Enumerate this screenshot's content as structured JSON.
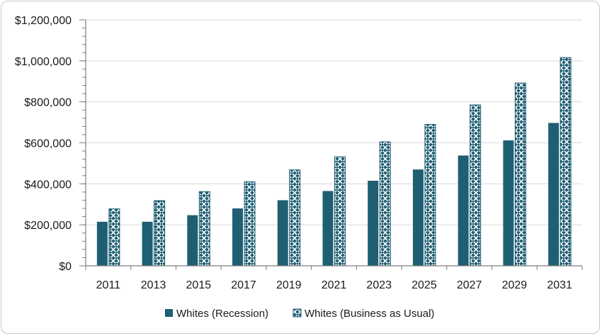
{
  "chart_data": {
    "type": "bar",
    "title": "",
    "xlabel": "",
    "ylabel": "",
    "categories": [
      "2011",
      "2013",
      "2015",
      "2017",
      "2019",
      "2021",
      "2023",
      "2025",
      "2027",
      "2029",
      "2031"
    ],
    "series": [
      {
        "name": "Whites (Recession)",
        "color": "#1f5f73",
        "pattern": "solid",
        "values": [
          215000,
          215000,
          247000,
          280000,
          320000,
          365000,
          415000,
          470000,
          538000,
          612000,
          697000
        ]
      },
      {
        "name": "Whites (Business as Usual)",
        "color": "#1f5f73",
        "pattern": "crosshatch",
        "values": [
          278000,
          318000,
          362000,
          410000,
          468000,
          532000,
          605000,
          690000,
          785000,
          892000,
          1016000
        ]
      }
    ],
    "ylim": [
      0,
      1200000
    ],
    "y_ticks": [
      "$0",
      "$200,000",
      "$400,000",
      "$600,000",
      "$800,000",
      "$1,000,000",
      "$1,200,000"
    ],
    "y_tick_values": [
      0,
      200000,
      400000,
      600000,
      800000,
      1000000,
      1200000
    ],
    "grid": true,
    "legend_position": "bottom"
  }
}
